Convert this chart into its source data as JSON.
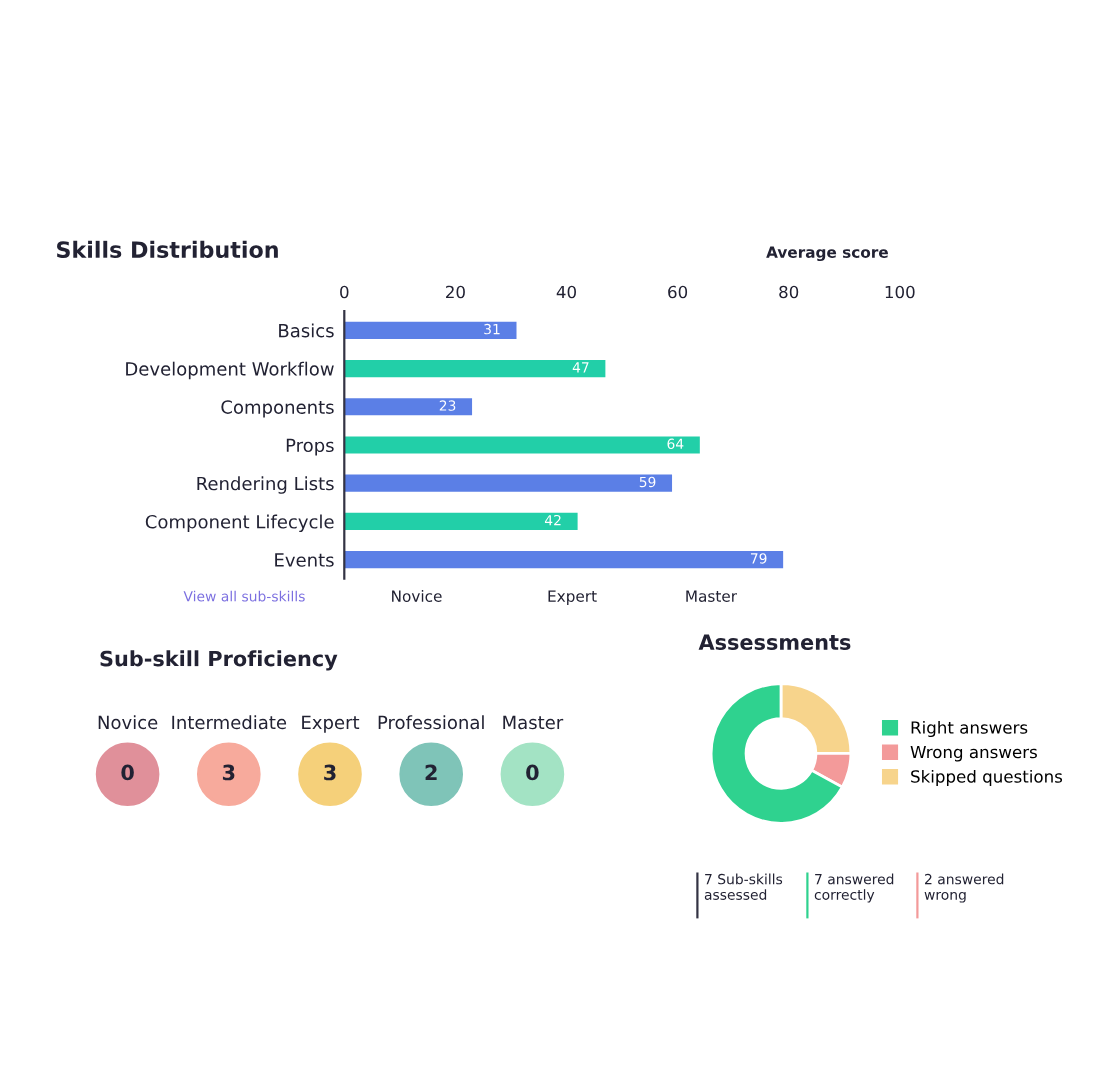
{
  "chart_data": [
    {
      "type": "bar",
      "orientation": "horizontal",
      "title": "Skills Distribution",
      "categories": [
        "Basics",
        "Development Workflow",
        "Components",
        "Props",
        "Rendering Lists",
        "Component Lifecycle",
        "Events"
      ],
      "values": [
        31,
        47,
        23,
        64,
        59,
        42,
        79
      ],
      "colors": [
        "#5b7fe6",
        "#22cfa8",
        "#5b7fe6",
        "#22cfa8",
        "#5b7fe6",
        "#22cfa8",
        "#5b7fe6"
      ],
      "data_labels": true,
      "xlim": [
        0,
        100
      ],
      "xticks": [
        0,
        20,
        40,
        60,
        80,
        100
      ],
      "annotations": [
        "Average score",
        "View all sub-skills",
        "Novice",
        "Expert",
        "Master"
      ],
      "grid": false,
      "legend": false
    },
    {
      "type": "other",
      "title": "Sub-skill Proficiency",
      "categories": [
        "Novice",
        "Intermediate",
        "Expert",
        "Professional",
        "Master"
      ],
      "values": [
        0,
        3,
        3,
        2,
        0
      ],
      "colors": [
        "#e0909a",
        "#f7aa9c",
        "#f5d07a",
        "#7fc4b8",
        "#a3e3c4"
      ],
      "data_labels": true
    },
    {
      "type": "donut",
      "title": "Assessments",
      "categories": [
        "Skipped questions",
        "Wrong answers",
        "Right answers"
      ],
      "values": [
        25,
        8,
        67
      ],
      "colors": [
        "#f7d48c",
        "#f39a9a",
        "#2fd28f"
      ],
      "legend": "right",
      "annotations": [
        "7 Sub-skills\nassessed",
        "7 answered\ncorrectly",
        "2 answered\nwrong"
      ]
    }
  ]
}
